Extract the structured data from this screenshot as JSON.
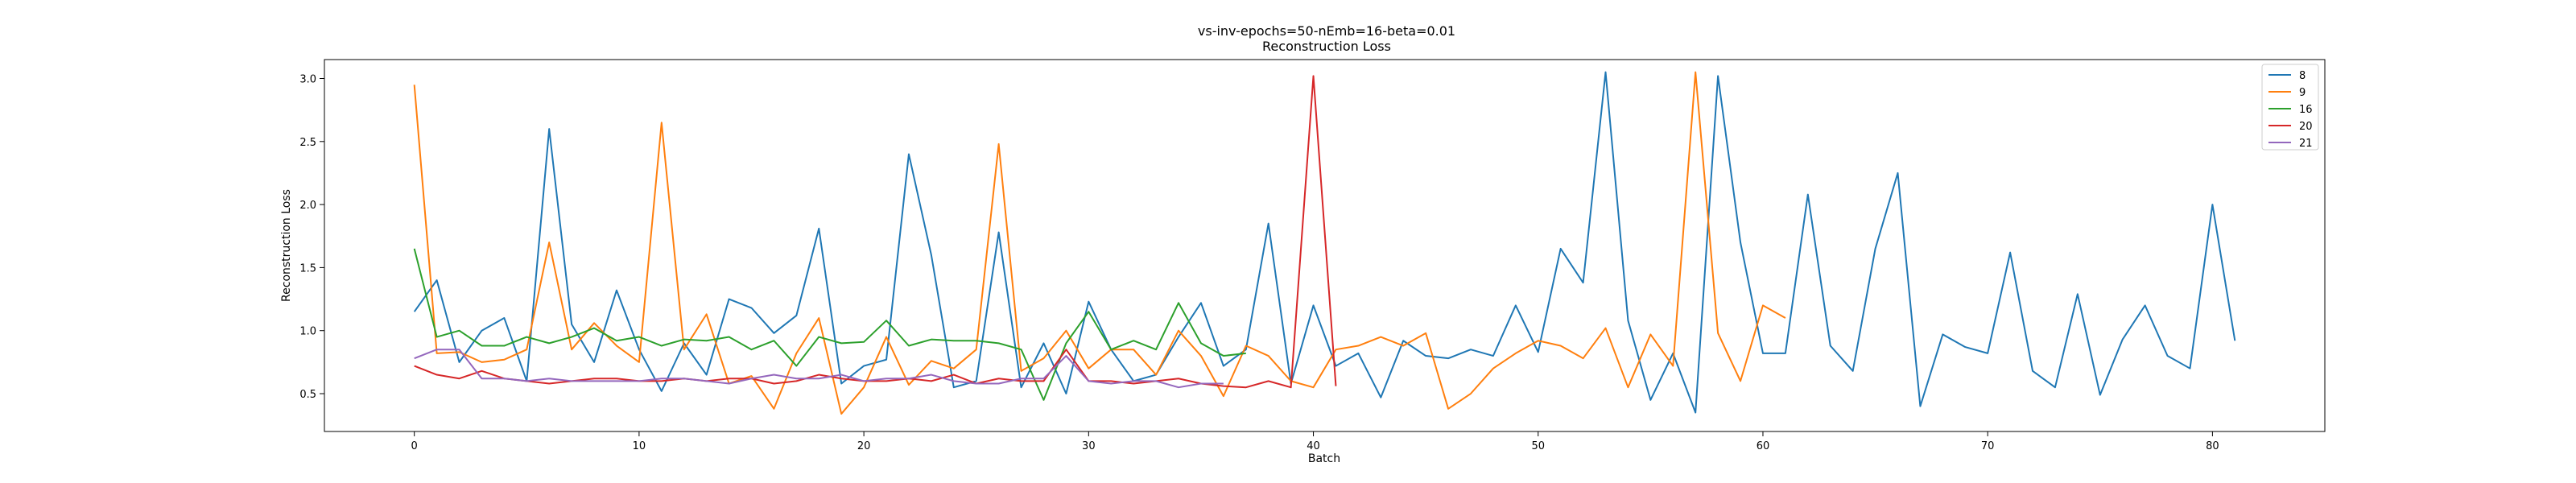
{
  "chart_data": {
    "type": "line",
    "title": "vs-inv-epochs=50-nEmb=16-beta=0.01",
    "subtitle": "Reconstruction Loss",
    "xlabel": "Batch",
    "ylabel": "Reconstruction Loss",
    "xlim": [
      -4,
      85
    ],
    "ylim": [
      0.2,
      3.15
    ],
    "xticks": [
      0,
      10,
      20,
      30,
      40,
      50,
      60,
      70,
      80
    ],
    "yticks": [
      "0.5",
      "1.0",
      "1.5",
      "2.0",
      "2.5",
      "3.0"
    ],
    "grid": false,
    "legend_position": "top-right",
    "series": [
      {
        "name": "8",
        "color": "#1f77b4",
        "values": [
          1.15,
          1.4,
          0.75,
          1.0,
          1.1,
          0.6,
          2.6,
          1.05,
          0.75,
          1.32,
          0.85,
          0.52,
          0.9,
          0.65,
          1.25,
          1.18,
          0.98,
          1.12,
          1.81,
          0.58,
          0.72,
          0.77,
          2.4,
          1.6,
          0.55,
          0.6,
          1.78,
          0.55,
          0.9,
          0.5,
          1.23,
          0.85,
          0.6,
          0.65,
          0.95,
          1.22,
          0.72,
          0.85,
          1.85,
          0.58,
          1.2,
          0.72,
          0.82,
          0.47,
          0.92,
          0.8,
          0.78,
          0.85,
          0.8,
          1.2,
          0.83,
          1.65,
          1.38,
          3.05,
          1.08,
          0.45,
          0.82,
          0.35,
          3.02,
          1.7,
          0.82,
          0.82,
          2.08,
          0.88,
          0.68,
          1.65,
          2.25,
          0.4,
          0.97,
          0.87,
          0.82,
          1.62,
          0.68,
          0.55,
          1.29,
          0.49,
          0.93,
          1.2,
          0.8,
          0.7,
          2.0,
          0.92
        ]
      },
      {
        "name": "9",
        "color": "#ff7f0e",
        "values": [
          2.95,
          0.82,
          0.83,
          0.75,
          0.77,
          0.85,
          1.7,
          0.85,
          1.06,
          0.88,
          0.75,
          2.65,
          0.85,
          1.13,
          0.58,
          0.64,
          0.38,
          0.82,
          1.1,
          0.34,
          0.55,
          0.95,
          0.57,
          0.76,
          0.7,
          0.85,
          2.48,
          0.68,
          0.78,
          1.0,
          0.7,
          0.85,
          0.85,
          0.65,
          1.0,
          0.8,
          0.48,
          0.88,
          0.8,
          0.6,
          0.55,
          0.85,
          0.88,
          0.95,
          0.88,
          0.98,
          0.38,
          0.5,
          0.7,
          0.82,
          0.92,
          0.88,
          0.78,
          1.02,
          0.55,
          0.97,
          0.72,
          3.05,
          0.98,
          0.6,
          1.2,
          1.1
        ]
      },
      {
        "name": "16",
        "color": "#2ca02c",
        "values": [
          1.65,
          0.95,
          1.0,
          0.88,
          0.88,
          0.95,
          0.9,
          0.95,
          1.02,
          0.92,
          0.95,
          0.88,
          0.93,
          0.92,
          0.95,
          0.85,
          0.92,
          0.72,
          0.95,
          0.9,
          0.91,
          1.08,
          0.88,
          0.93,
          0.92,
          0.92,
          0.9,
          0.85,
          0.45,
          0.9,
          1.15,
          0.85,
          0.92,
          0.85,
          1.22,
          0.9,
          0.8,
          0.82
        ]
      },
      {
        "name": "20",
        "color": "#d62728",
        "values": [
          0.72,
          0.65,
          0.62,
          0.68,
          0.62,
          0.6,
          0.58,
          0.6,
          0.62,
          0.62,
          0.6,
          0.6,
          0.62,
          0.6,
          0.62,
          0.62,
          0.58,
          0.6,
          0.65,
          0.62,
          0.6,
          0.6,
          0.62,
          0.6,
          0.65,
          0.58,
          0.62,
          0.6,
          0.6,
          0.85,
          0.6,
          0.6,
          0.58,
          0.6,
          0.62,
          0.58,
          0.56,
          0.55,
          0.6,
          0.55,
          3.02,
          0.56
        ]
      },
      {
        "name": "21",
        "color": "#9467bd",
        "values": [
          0.78,
          0.85,
          0.85,
          0.62,
          0.62,
          0.6,
          0.62,
          0.6,
          0.6,
          0.6,
          0.6,
          0.62,
          0.62,
          0.6,
          0.58,
          0.62,
          0.65,
          0.62,
          0.62,
          0.65,
          0.6,
          0.62,
          0.62,
          0.65,
          0.6,
          0.58,
          0.58,
          0.62,
          0.62,
          0.8,
          0.6,
          0.58,
          0.6,
          0.6,
          0.55,
          0.58,
          0.58
        ]
      }
    ]
  }
}
